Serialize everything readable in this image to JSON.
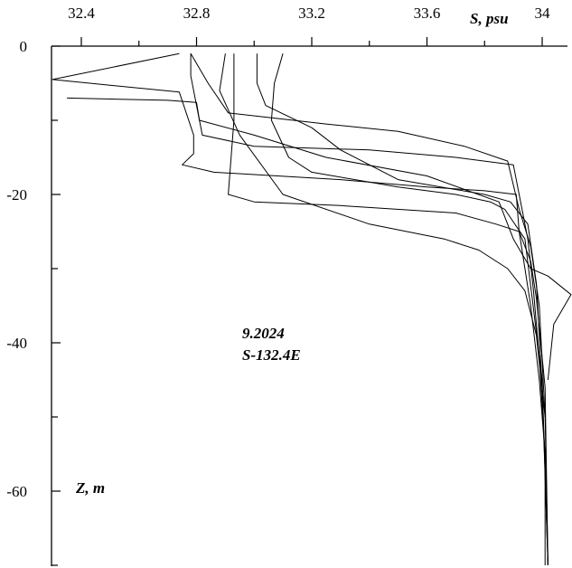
{
  "chart_data": {
    "type": "line",
    "xlabel": "S, psu",
    "ylabel": "Z, m",
    "x_ticks": [
      "32.4",
      "32.8",
      "33.2",
      "33.6",
      "34"
    ],
    "y_ticks": [
      "0",
      "-20",
      "-40",
      "-60"
    ],
    "xlim": [
      32.29,
      34.1
    ],
    "ylim": [
      -70,
      0
    ],
    "x_axis_position": "top",
    "grid": false,
    "annotations": [
      "9.2024",
      "S-132.4E"
    ],
    "series": [
      {
        "x": [
          32.74,
          32.3,
          32.74,
          32.79,
          32.79,
          32.75,
          32.86,
          33.3,
          33.6,
          33.8,
          33.91,
          33.92,
          33.96,
          33.99,
          34.01,
          34.01
        ],
        "y": [
          -1,
          -4.5,
          -6.2,
          -12,
          -14.5,
          -16,
          -17,
          -18,
          -19,
          -19.5,
          -20,
          -25,
          -35,
          -45,
          -55,
          -70
        ]
      },
      {
        "x": [
          32.78,
          32.78,
          32.79,
          32.8,
          32.81,
          32.82,
          33.0,
          33.4,
          33.7,
          33.9,
          33.93,
          33.95,
          33.97,
          33.99,
          34.01,
          34.02
        ],
        "y": [
          -1,
          -4,
          -6,
          -8,
          -10,
          -12,
          -13.5,
          -14,
          -15,
          -16,
          -22,
          -26,
          -33,
          -42,
          -55,
          -70
        ]
      },
      {
        "x": [
          32.78,
          32.84,
          32.91,
          33.25,
          33.5,
          33.73,
          33.88,
          33.92,
          33.96,
          33.99,
          34.01,
          34.02
        ],
        "y": [
          -1,
          -5,
          -9,
          -10.5,
          -11.5,
          -13.5,
          -15.5,
          -22,
          -27,
          -35,
          -50,
          -70
        ]
      },
      {
        "x": [
          32.93,
          32.93,
          32.91,
          33.0,
          33.3,
          33.7,
          33.84,
          33.92,
          33.96,
          33.98,
          34.01,
          34.02
        ],
        "y": [
          -1,
          -10,
          -20,
          -21,
          -21.5,
          -22.5,
          -24,
          -25,
          -29,
          -34,
          -46,
          -70
        ]
      },
      {
        "x": [
          33.01,
          33.01,
          33.04,
          33.2,
          33.3,
          33.5,
          33.8,
          33.89,
          33.95,
          33.98,
          34.0,
          34.02
        ],
        "y": [
          -1,
          -5,
          -8,
          -11,
          -14,
          -18,
          -20,
          -21,
          -24,
          -32,
          -46,
          -70
        ]
      },
      {
        "x": [
          33.1,
          33.07,
          33.06,
          33.12,
          33.2,
          33.5,
          33.7,
          33.82,
          33.87,
          33.94,
          34.0,
          34.02
        ],
        "y": [
          -1,
          -5,
          -10,
          -15,
          -17,
          -19,
          -20,
          -21,
          -22,
          -26,
          -45,
          -70
        ]
      },
      {
        "x": [
          32.9,
          32.88,
          32.95,
          33.1,
          33.4,
          33.66,
          33.78,
          33.88,
          33.94,
          33.98,
          34.01
        ],
        "y": [
          -1,
          -6,
          -12,
          -20,
          -24,
          -26,
          -27.5,
          -30,
          -33,
          -39,
          -50
        ]
      },
      {
        "x": [
          32.35,
          32.7,
          32.8,
          32.81,
          33.0,
          33.25,
          33.6,
          33.85,
          33.9,
          33.96,
          34.02,
          34.1,
          34.04,
          34.02
        ],
        "y": [
          -7,
          -7.3,
          -7.6,
          -10,
          -12,
          -15,
          -17.5,
          -21,
          -26,
          -30,
          -31,
          -33.5,
          -37.5,
          -45
        ]
      }
    ]
  }
}
